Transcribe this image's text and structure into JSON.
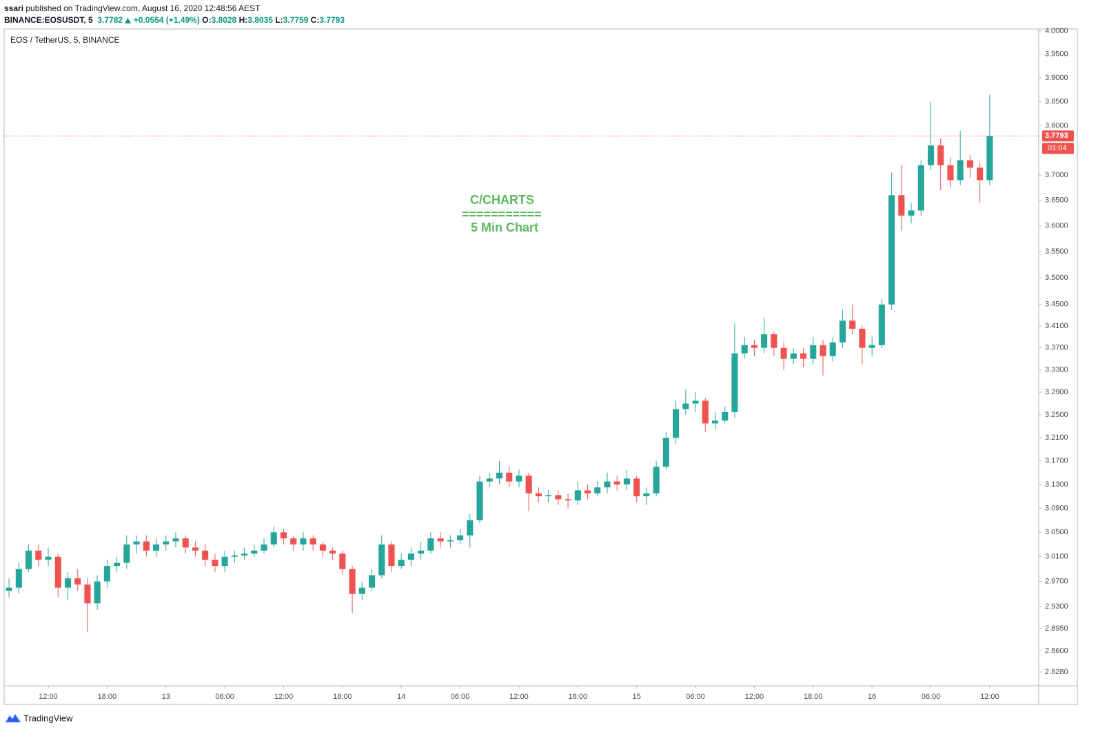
{
  "header": {
    "author": "ssari",
    "published": "published on TradingView.com, August 16, 2020 12:48:56 AEST",
    "symbol": "BINANCE:EOSUSDT, 5",
    "price": "3.7782",
    "change": "+0.0554 (+1.49%)",
    "o_label": "O:",
    "o": "3.8028",
    "h_label": "H:",
    "h": "3.8035",
    "l_label": "L:",
    "l": "3.7759",
    "c_label": "C:",
    "c": "3.7793"
  },
  "footer": {
    "brand": "TradingView"
  },
  "chart_data": {
    "type": "candlestick",
    "title": "EOS / TetherUS, 5, BINANCE",
    "annotations": [
      "C/CHARTS",
      "===========",
      "5 Min Chart"
    ],
    "annotation_color": "#5cb85c",
    "up_color": "#26a69a",
    "down_color": "#ef5350",
    "last_price": 3.7793,
    "countdown": "01:04",
    "log_scale": true,
    "ylim": [
      2.807,
      4.0045
    ],
    "yticks": [
      {
        "value": 4,
        "label": "4.0000"
      },
      {
        "value": 3.95,
        "label": "3.9500"
      },
      {
        "value": 3.9,
        "label": "3.9000"
      },
      {
        "value": 3.85,
        "label": "3.8500"
      },
      {
        "value": 3.8,
        "label": "3.8000"
      },
      {
        "value": 3.7,
        "label": "3.7000"
      },
      {
        "value": 3.65,
        "label": "3.6500"
      },
      {
        "value": 3.6,
        "label": "3.6000"
      },
      {
        "value": 3.55,
        "label": "3.5500"
      },
      {
        "value": 3.5,
        "label": "3.5000"
      },
      {
        "value": 3.45,
        "label": "3.4500"
      },
      {
        "value": 3.41,
        "label": "3.4100"
      },
      {
        "value": 3.37,
        "label": "3.3700"
      },
      {
        "value": 3.33,
        "label": "3.3300"
      },
      {
        "value": 3.29,
        "label": "3.2900"
      },
      {
        "value": 3.25,
        "label": "3.2500"
      },
      {
        "value": 3.21,
        "label": "3.2100"
      },
      {
        "value": 3.17,
        "label": "3.1700"
      },
      {
        "value": 3.13,
        "label": "3.1300"
      },
      {
        "value": 3.09,
        "label": "3.0900"
      },
      {
        "value": 3.05,
        "label": "3.0500"
      },
      {
        "value": 3.01,
        "label": "3.0100"
      },
      {
        "value": 2.97,
        "label": "2.9700"
      },
      {
        "value": 2.93,
        "label": "2.9300"
      },
      {
        "value": 2.895,
        "label": "2.8950"
      },
      {
        "value": 2.86,
        "label": "2.8600"
      },
      {
        "value": 2.828,
        "label": "2.8280"
      }
    ],
    "xlim": [
      -0.5,
      105
    ],
    "xticks": [
      {
        "value": 4,
        "label": "12:00"
      },
      {
        "value": 10,
        "label": "18:00"
      },
      {
        "value": 16,
        "label": "13"
      },
      {
        "value": 22,
        "label": "06:00"
      },
      {
        "value": 28,
        "label": "12:00"
      },
      {
        "value": 34,
        "label": "18:00"
      },
      {
        "value": 40,
        "label": "14"
      },
      {
        "value": 46,
        "label": "06:00"
      },
      {
        "value": 52,
        "label": "12:00"
      },
      {
        "value": 58,
        "label": "18:00"
      },
      {
        "value": 64,
        "label": "15"
      },
      {
        "value": 70,
        "label": "06:00"
      },
      {
        "value": 76,
        "label": "12:00"
      },
      {
        "value": 82,
        "label": "18:00"
      },
      {
        "value": 88,
        "label": "16"
      },
      {
        "value": 94,
        "label": "06:00"
      },
      {
        "value": 100,
        "label": "12:00"
      }
    ],
    "open": [
      2.955,
      2.96,
      2.99,
      3.02,
      3.005,
      3.01,
      2.96,
      2.975,
      2.965,
      2.935,
      2.97,
      2.995,
      3.0,
      3.03,
      3.035,
      3.02,
      3.03,
      3.035,
      3.04,
      3.025,
      3.02,
      3.005,
      2.995,
      3.01,
      3.012,
      3.015,
      3.02,
      3.03,
      3.05,
      3.04,
      3.03,
      3.04,
      3.03,
      3.02,
      3.015,
      2.99,
      2.95,
      2.96,
      2.98,
      3.03,
      2.995,
      3.005,
      3.015,
      3.02,
      3.04,
      3.035,
      3.037,
      3.045,
      3.07,
      3.135,
      3.14,
      3.15,
      3.135,
      3.145,
      3.115,
      3.11,
      3.112,
      3.105,
      3.103,
      3.12,
      3.115,
      3.125,
      3.135,
      3.13,
      3.14,
      3.11,
      3.115,
      3.16,
      3.21,
      3.26,
      3.27,
      3.275,
      3.235,
      3.24,
      3.255,
      3.36,
      3.375,
      3.37,
      3.395,
      3.37,
      3.35,
      3.36,
      3.35,
      3.375,
      3.355,
      3.38,
      3.42,
      3.405,
      3.37,
      3.375,
      3.45,
      3.66,
      3.62,
      3.63,
      3.72,
      3.76,
      3.72,
      3.69,
      3.73,
      3.715,
      3.69
    ],
    "high": [
      2.975,
      3.0,
      3.03,
      3.03,
      3.025,
      3.015,
      2.985,
      2.99,
      2.975,
      2.98,
      3.005,
      3.01,
      3.045,
      3.045,
      3.045,
      3.04,
      3.045,
      3.05,
      3.045,
      3.035,
      3.03,
      3.015,
      3.02,
      3.02,
      3.025,
      3.03,
      3.04,
      3.06,
      3.055,
      3.045,
      3.05,
      3.045,
      3.035,
      3.025,
      3.02,
      2.995,
      2.97,
      2.99,
      3.045,
      3.035,
      3.015,
      3.025,
      3.035,
      3.05,
      3.05,
      3.045,
      3.055,
      3.08,
      3.145,
      3.15,
      3.17,
      3.16,
      3.155,
      3.15,
      3.125,
      3.12,
      3.12,
      3.115,
      3.135,
      3.13,
      3.135,
      3.15,
      3.145,
      3.155,
      3.145,
      3.125,
      3.17,
      3.22,
      3.275,
      3.295,
      3.29,
      3.28,
      3.255,
      3.265,
      3.415,
      3.39,
      3.385,
      3.425,
      3.4,
      3.38,
      3.37,
      3.37,
      3.39,
      3.385,
      3.39,
      3.44,
      3.45,
      3.41,
      3.39,
      3.46,
      3.705,
      3.72,
      3.645,
      3.73,
      3.85,
      3.775,
      3.735,
      3.79,
      3.74,
      3.725,
      3.865
    ],
    "low": [
      2.945,
      2.95,
      2.985,
      2.995,
      2.995,
      2.945,
      2.94,
      2.955,
      2.89,
      2.925,
      2.96,
      2.985,
      2.99,
      3.015,
      3.01,
      3.01,
      3.02,
      3.025,
      3.015,
      3.01,
      2.995,
      2.985,
      2.985,
      3.0,
      3.005,
      3.01,
      3.015,
      3.025,
      3.03,
      3.02,
      3.02,
      3.02,
      3.01,
      3.005,
      2.98,
      2.92,
      2.94,
      2.955,
      2.975,
      2.985,
      2.99,
      2.995,
      3.005,
      3.015,
      3.025,
      3.025,
      3.03,
      3.025,
      3.065,
      3.125,
      3.13,
      3.125,
      3.125,
      3.085,
      3.1,
      3.1,
      3.095,
      3.09,
      3.095,
      3.105,
      3.11,
      3.115,
      3.12,
      3.12,
      3.1,
      3.095,
      3.11,
      3.155,
      3.2,
      3.25,
      3.255,
      3.22,
      3.225,
      3.235,
      3.245,
      3.35,
      3.355,
      3.36,
      3.355,
      3.33,
      3.34,
      3.335,
      3.34,
      3.32,
      3.345,
      3.37,
      3.395,
      3.34,
      3.355,
      3.37,
      3.44,
      3.59,
      3.605,
      3.62,
      3.71,
      3.67,
      3.675,
      3.68,
      3.695,
      3.645,
      3.68
    ],
    "close": [
      2.96,
      2.99,
      3.02,
      3.005,
      3.01,
      2.96,
      2.975,
      2.965,
      2.935,
      2.97,
      2.995,
      3.0,
      3.03,
      3.035,
      3.02,
      3.03,
      3.035,
      3.04,
      3.025,
      3.02,
      3.005,
      2.995,
      3.01,
      3.012,
      3.015,
      3.02,
      3.03,
      3.05,
      3.04,
      3.03,
      3.04,
      3.03,
      3.02,
      3.015,
      2.99,
      2.95,
      2.96,
      2.98,
      3.03,
      2.995,
      3.005,
      3.015,
      3.02,
      3.04,
      3.035,
      3.037,
      3.045,
      3.07,
      3.135,
      3.14,
      3.15,
      3.135,
      3.145,
      3.115,
      3.11,
      3.112,
      3.105,
      3.103,
      3.12,
      3.115,
      3.125,
      3.135,
      3.13,
      3.14,
      3.11,
      3.115,
      3.16,
      3.21,
      3.26,
      3.27,
      3.275,
      3.235,
      3.24,
      3.255,
      3.36,
      3.375,
      3.37,
      3.395,
      3.37,
      3.35,
      3.36,
      3.35,
      3.375,
      3.355,
      3.38,
      3.42,
      3.405,
      3.37,
      3.375,
      3.45,
      3.66,
      3.62,
      3.63,
      3.72,
      3.76,
      3.72,
      3.69,
      3.73,
      3.715,
      3.69,
      3.7793
    ]
  }
}
